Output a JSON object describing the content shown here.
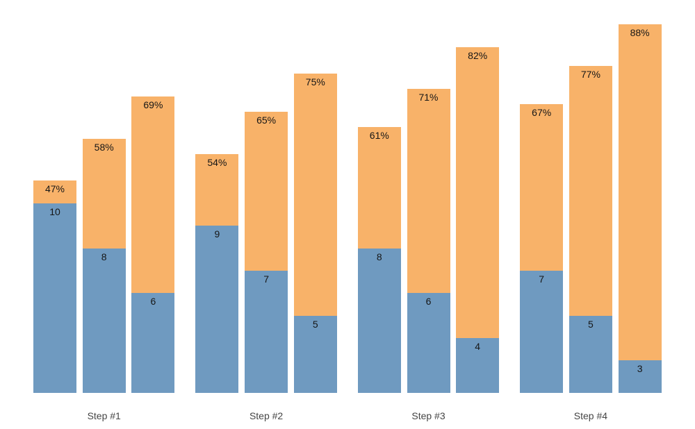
{
  "chart_data": {
    "type": "bar",
    "subtype": "grouped-stacked",
    "title": "",
    "xlabel": "",
    "ylabel": "",
    "legend": "none",
    "grid": false,
    "y_axis_visible": false,
    "background_color": "#ffffff",
    "colors": {
      "bottom_segment": "#6F9AC0",
      "top_segment": "#F8B269",
      "bar_label_text": "#161616",
      "axis_label_text": "#454545"
    },
    "categories": [
      "Step #1",
      "Step #2",
      "Step #3",
      "Step #4"
    ],
    "groups": [
      {
        "category": "Step #1",
        "bars": [
          {
            "count": 10,
            "count_label": "10",
            "pct": 47,
            "pct_label": "47%"
          },
          {
            "count": 8,
            "count_label": "8",
            "pct": 58,
            "pct_label": "58%"
          },
          {
            "count": 6,
            "count_label": "6",
            "pct": 69,
            "pct_label": "69%"
          }
        ]
      },
      {
        "category": "Step #2",
        "bars": [
          {
            "count": 9,
            "count_label": "9",
            "pct": 54,
            "pct_label": "54%"
          },
          {
            "count": 7,
            "count_label": "7",
            "pct": 65,
            "pct_label": "65%"
          },
          {
            "count": 5,
            "count_label": "5",
            "pct": 75,
            "pct_label": "75%"
          }
        ]
      },
      {
        "category": "Step #3",
        "bars": [
          {
            "count": 8,
            "count_label": "8",
            "pct": 61,
            "pct_label": "61%"
          },
          {
            "count": 6,
            "count_label": "6",
            "pct": 71,
            "pct_label": "71%"
          },
          {
            "count": 4,
            "count_label": "4",
            "pct": 82,
            "pct_label": "82%"
          }
        ]
      },
      {
        "category": "Step #4",
        "bars": [
          {
            "count": 7,
            "count_label": "7",
            "pct": 67,
            "pct_label": "67%"
          },
          {
            "count": 5,
            "count_label": "5",
            "pct": 77,
            "pct_label": "77%"
          },
          {
            "count": 3,
            "count_label": "3",
            "pct": 88,
            "pct_label": "88%"
          }
        ]
      }
    ]
  }
}
